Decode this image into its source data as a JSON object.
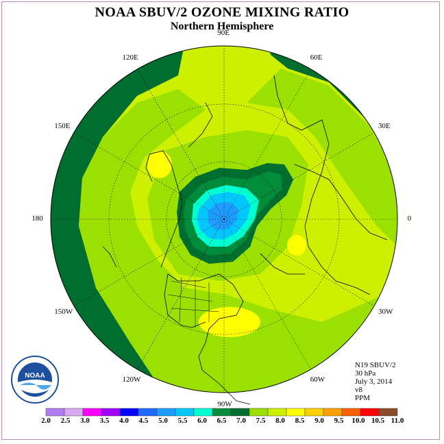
{
  "title": "NOAA SBUV/2 OZONE MIXING RATIO",
  "subtitle": "Northern Hemisphere",
  "longitude_labels": [
    {
      "text": "90E",
      "lon": 90
    },
    {
      "text": "60E",
      "lon": 60
    },
    {
      "text": "30E",
      "lon": 30
    },
    {
      "text": "0",
      "lon": 0
    },
    {
      "text": "30W",
      "lon": -30
    },
    {
      "text": "60W",
      "lon": -60
    },
    {
      "text": "90W",
      "lon": -90
    },
    {
      "text": "120W",
      "lon": -120
    },
    {
      "text": "150W",
      "lon": -150
    },
    {
      "text": "180",
      "lon": 180
    },
    {
      "text": "150E",
      "lon": 150
    },
    {
      "text": "120E",
      "lon": 120
    }
  ],
  "info": {
    "satellite": "N19 SBUV/2",
    "level": "30 hPa",
    "date": "July 3, 2014",
    "version": "v8",
    "units": "PPM"
  },
  "colorbar": {
    "ticks": [
      "2.0",
      "2.5",
      "3.0",
      "3.5",
      "4.0",
      "4.5",
      "5.0",
      "5.5",
      "6.0",
      "6.5",
      "7.0",
      "7.5",
      "8.0",
      "8.5",
      "9.0",
      "9.5",
      "10.0",
      "10.5",
      "11.0"
    ],
    "colors": [
      "#b07cf0",
      "#d8a8f0",
      "#ff00ff",
      "#a000ff",
      "#0000ff",
      "#1e6cff",
      "#1e9cff",
      "#00c8ff",
      "#00ffd0",
      "#008c3a",
      "#006e2e",
      "#9be000",
      "#ccf000",
      "#ffff00",
      "#ffd000",
      "#ffa000",
      "#ff6000",
      "#ff0000",
      "#8b4a2a"
    ]
  },
  "logo": {
    "text": "NOAA"
  }
}
